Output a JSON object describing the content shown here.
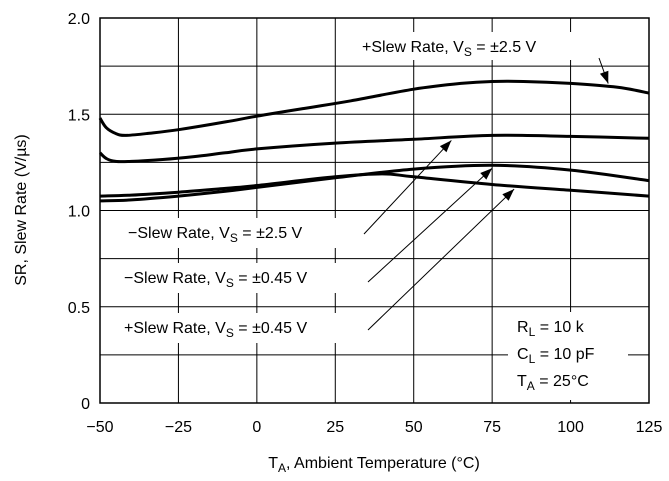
{
  "chart_data": {
    "type": "line",
    "title": "",
    "xlabel": {
      "main": "T",
      "sub": "A",
      "rest": ", Ambient Temperature (°C)"
    },
    "ylabel": "SR, Slew Rate (V/µs)",
    "xlim": [
      -50,
      125
    ],
    "ylim": [
      0,
      2.0
    ],
    "grid": true,
    "x_ticks": [
      "−50",
      "−25",
      "0",
      "25",
      "50",
      "75",
      "100",
      "125"
    ],
    "y_ticks": [
      "0",
      "0.5",
      "1.0",
      "1.5",
      "2.0"
    ],
    "series": [
      {
        "name": {
          "pre": "+Slew Rate, V",
          "sub": "S",
          "post": " = ±2.5 V"
        },
        "x": [
          -50,
          -48,
          -45,
          -42,
          -35,
          -25,
          -10,
          0,
          15,
          30,
          50,
          65,
          75,
          85,
          100,
          115,
          125
        ],
        "y": [
          1.48,
          1.43,
          1.4,
          1.39,
          1.4,
          1.42,
          1.46,
          1.49,
          1.53,
          1.57,
          1.63,
          1.66,
          1.67,
          1.67,
          1.66,
          1.64,
          1.61
        ]
      },
      {
        "name": {
          "pre": "−Slew Rate, V",
          "sub": "S",
          "post": " = ±2.5 V"
        },
        "x": [
          -50,
          -48,
          -45,
          -40,
          -30,
          -20,
          -10,
          0,
          25,
          50,
          75,
          100,
          125
        ],
        "y": [
          1.3,
          1.27,
          1.255,
          1.255,
          1.265,
          1.28,
          1.3,
          1.32,
          1.35,
          1.37,
          1.39,
          1.385,
          1.375
        ]
      },
      {
        "name": {
          "pre": "−Slew Rate, V",
          "sub": "S",
          "post": " = ±0.45 V"
        },
        "x": [
          -50,
          -40,
          -25,
          -10,
          0,
          25,
          50,
          75,
          100,
          125
        ],
        "y": [
          1.05,
          1.055,
          1.075,
          1.1,
          1.12,
          1.17,
          1.215,
          1.235,
          1.21,
          1.155
        ]
      },
      {
        "name": {
          "pre": "+Slew Rate, V",
          "sub": "S",
          "post": " = ±0.45 V"
        },
        "x": [
          -50,
          -40,
          -25,
          -10,
          0,
          25,
          40,
          50,
          75,
          100,
          125
        ],
        "y": [
          1.075,
          1.08,
          1.095,
          1.115,
          1.13,
          1.175,
          1.19,
          1.175,
          1.135,
          1.105,
          1.075
        ]
      }
    ],
    "conditions": [
      {
        "pre": "R",
        "sub": "L",
        "post": " =  10 k"
      },
      {
        "pre": "C",
        "sub": "L",
        "post": " = 10 pF"
      },
      {
        "pre": "T",
        "sub": "A",
        "post": " = 25°C"
      }
    ]
  }
}
